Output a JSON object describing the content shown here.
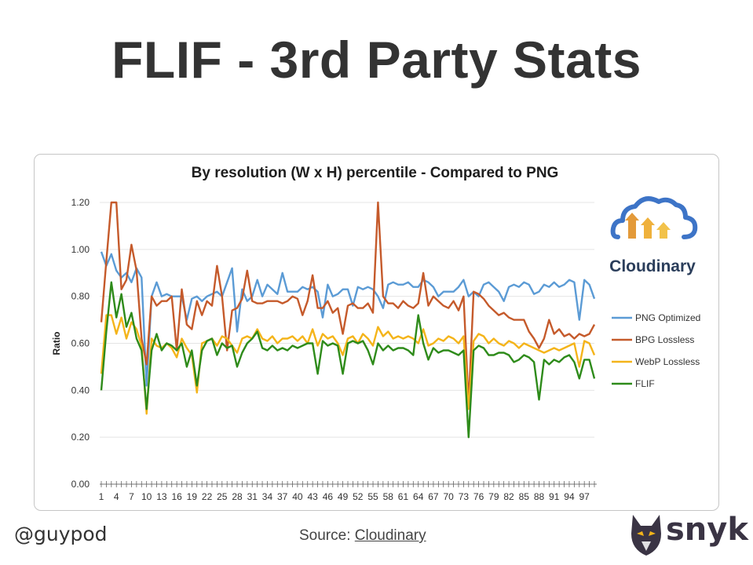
{
  "slide": {
    "title": "FLIF - 3rd Party Stats",
    "handle": "@guypod",
    "source_label": "Source:",
    "source_link": "Cloudinary",
    "brand": "snyk"
  },
  "logo": {
    "name": "Cloudinary"
  },
  "colors": {
    "png_optimized": "#5b9bd5",
    "bpg_lossless": "#c55a2b",
    "webp_lossless": "#f4b41a",
    "flif": "#2e8b1a",
    "cloud_stroke": "#3d74c7",
    "arrow_colors": [
      "#e39a3a",
      "#efb13c",
      "#f2c24a"
    ],
    "snyk_dark": "#3a3444"
  },
  "chart_data": {
    "type": "line",
    "title": "By resolution (W x H) percentile - Compared to PNG",
    "xlabel": "",
    "ylabel": "Ratio",
    "ylim": [
      0,
      1.2
    ],
    "yticks": [
      "0.00",
      "0.20",
      "0.40",
      "0.60",
      "0.80",
      "1.00",
      "1.20"
    ],
    "xlim": [
      1,
      99
    ],
    "xtick_labels": [
      "1",
      "4",
      "7",
      "10",
      "13",
      "16",
      "19",
      "22",
      "25",
      "28",
      "31",
      "34",
      "37",
      "40",
      "43",
      "46",
      "49",
      "52",
      "55",
      "58",
      "61",
      "64",
      "67",
      "70",
      "73",
      "76",
      "79",
      "82",
      "85",
      "88",
      "91",
      "94",
      "97"
    ],
    "grid": "horizontal",
    "legend_position": "right",
    "series": [
      {
        "name": "PNG Optimized",
        "values": [
          0.99,
          0.93,
          0.98,
          0.91,
          0.88,
          0.9,
          0.86,
          0.92,
          0.88,
          0.42,
          0.8,
          0.86,
          0.8,
          0.81,
          0.8,
          0.8,
          0.8,
          0.7,
          0.79,
          0.8,
          0.78,
          0.8,
          0.81,
          0.82,
          0.8,
          0.86,
          0.92,
          0.65,
          0.83,
          0.78,
          0.8,
          0.87,
          0.8,
          0.85,
          0.83,
          0.81,
          0.9,
          0.82,
          0.82,
          0.82,
          0.84,
          0.83,
          0.84,
          0.82,
          0.71,
          0.85,
          0.8,
          0.81,
          0.83,
          0.83,
          0.76,
          0.84,
          0.83,
          0.84,
          0.83,
          0.8,
          0.75,
          0.85,
          0.86,
          0.85,
          0.85,
          0.86,
          0.84,
          0.84,
          0.87,
          0.86,
          0.84,
          0.8,
          0.82,
          0.82,
          0.82,
          0.84,
          0.87,
          0.8,
          0.82,
          0.8,
          0.85,
          0.86,
          0.84,
          0.82,
          0.78,
          0.84,
          0.85,
          0.84,
          0.86,
          0.85,
          0.81,
          0.82,
          0.85,
          0.84,
          0.86,
          0.84,
          0.85,
          0.87,
          0.86,
          0.7,
          0.87,
          0.85,
          0.79
        ]
      },
      {
        "name": "BPG Lossless",
        "values": [
          0.69,
          0.95,
          1.2,
          1.2,
          0.83,
          0.87,
          1.02,
          0.91,
          0.62,
          0.51,
          0.8,
          0.76,
          0.78,
          0.78,
          0.8,
          0.57,
          0.83,
          0.68,
          0.66,
          0.78,
          0.72,
          0.78,
          0.76,
          0.93,
          0.8,
          0.57,
          0.74,
          0.75,
          0.79,
          0.91,
          0.78,
          0.77,
          0.77,
          0.78,
          0.78,
          0.78,
          0.77,
          0.78,
          0.8,
          0.79,
          0.72,
          0.78,
          0.89,
          0.75,
          0.75,
          0.78,
          0.73,
          0.75,
          0.64,
          0.76,
          0.77,
          0.75,
          0.75,
          0.77,
          0.73,
          1.2,
          0.8,
          0.77,
          0.77,
          0.75,
          0.78,
          0.76,
          0.75,
          0.77,
          0.9,
          0.76,
          0.8,
          0.78,
          0.76,
          0.75,
          0.78,
          0.74,
          0.8,
          0.34,
          0.82,
          0.81,
          0.79,
          0.76,
          0.74,
          0.72,
          0.73,
          0.71,
          0.7,
          0.7,
          0.7,
          0.65,
          0.62,
          0.58,
          0.62,
          0.7,
          0.64,
          0.66,
          0.63,
          0.64,
          0.62,
          0.64,
          0.63,
          0.64,
          0.68
        ]
      },
      {
        "name": "WebP Lossless",
        "values": [
          0.47,
          0.72,
          0.72,
          0.64,
          0.71,
          0.62,
          0.69,
          0.66,
          0.59,
          0.3,
          0.62,
          0.59,
          0.58,
          0.6,
          0.58,
          0.54,
          0.62,
          0.58,
          0.55,
          0.39,
          0.6,
          0.61,
          0.62,
          0.59,
          0.63,
          0.62,
          0.59,
          0.56,
          0.62,
          0.63,
          0.62,
          0.66,
          0.62,
          0.61,
          0.63,
          0.6,
          0.62,
          0.62,
          0.63,
          0.61,
          0.63,
          0.6,
          0.66,
          0.59,
          0.64,
          0.62,
          0.63,
          0.6,
          0.55,
          0.62,
          0.63,
          0.6,
          0.64,
          0.62,
          0.59,
          0.67,
          0.63,
          0.65,
          0.62,
          0.63,
          0.62,
          0.63,
          0.62,
          0.6,
          0.66,
          0.59,
          0.6,
          0.62,
          0.61,
          0.63,
          0.62,
          0.6,
          0.63,
          0.32,
          0.61,
          0.64,
          0.63,
          0.6,
          0.62,
          0.6,
          0.59,
          0.61,
          0.6,
          0.58,
          0.6,
          0.59,
          0.58,
          0.57,
          0.56,
          0.57,
          0.58,
          0.57,
          0.58,
          0.59,
          0.6,
          0.5,
          0.61,
          0.6,
          0.55
        ]
      },
      {
        "name": "FLIF",
        "values": [
          0.4,
          0.65,
          0.86,
          0.71,
          0.81,
          0.67,
          0.73,
          0.62,
          0.57,
          0.32,
          0.57,
          0.64,
          0.57,
          0.6,
          0.59,
          0.57,
          0.6,
          0.5,
          0.57,
          0.42,
          0.57,
          0.61,
          0.62,
          0.55,
          0.6,
          0.58,
          0.59,
          0.5,
          0.56,
          0.6,
          0.62,
          0.65,
          0.58,
          0.57,
          0.59,
          0.57,
          0.58,
          0.57,
          0.59,
          0.58,
          0.59,
          0.6,
          0.6,
          0.47,
          0.61,
          0.59,
          0.6,
          0.59,
          0.47,
          0.6,
          0.61,
          0.6,
          0.61,
          0.57,
          0.51,
          0.6,
          0.57,
          0.59,
          0.57,
          0.58,
          0.58,
          0.57,
          0.55,
          0.72,
          0.6,
          0.53,
          0.58,
          0.56,
          0.57,
          0.57,
          0.56,
          0.55,
          0.57,
          0.2,
          0.57,
          0.59,
          0.58,
          0.55,
          0.55,
          0.56,
          0.56,
          0.55,
          0.52,
          0.53,
          0.55,
          0.54,
          0.52,
          0.36,
          0.53,
          0.51,
          0.53,
          0.52,
          0.54,
          0.55,
          0.52,
          0.45,
          0.53,
          0.53,
          0.45
        ]
      }
    ]
  }
}
